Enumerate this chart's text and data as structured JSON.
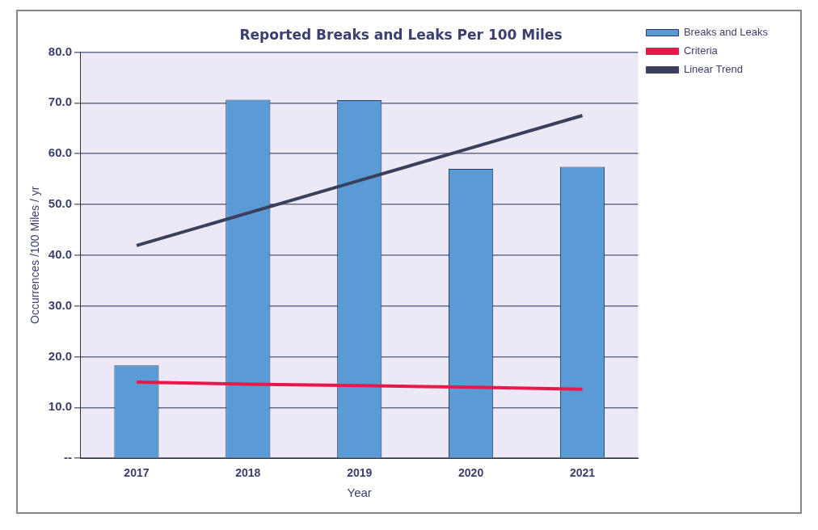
{
  "chart_data": {
    "type": "bar",
    "title": "Reported Breaks and Leaks Per 100 Miles",
    "xlabel": "Year",
    "ylabel": "Occurrences /100 Miles / yr",
    "categories": [
      "2017",
      "2018",
      "2019",
      "2020",
      "2021"
    ],
    "series": [
      {
        "name": "Breaks and Leaks",
        "color": "#5b9bd5",
        "values": [
          18.3,
          70.6,
          70.5,
          57.0,
          57.4
        ]
      },
      {
        "name": "Criteria",
        "type": "line",
        "color": "#e8194a",
        "values": [
          15.0,
          14.6,
          14.3,
          14.0,
          13.6
        ]
      },
      {
        "name": "Linear Trend",
        "type": "line",
        "color": "#3a3f5c",
        "values": [
          41.9,
          48.3,
          54.7,
          61.1,
          67.5
        ]
      }
    ],
    "ylim": [
      0,
      80
    ],
    "yticks": [
      {
        "value": 0,
        "label": "--"
      },
      {
        "value": 10,
        "label": "10.0"
      },
      {
        "value": 20,
        "label": "20.0"
      },
      {
        "value": 30,
        "label": "30.0"
      },
      {
        "value": 40,
        "label": "40.0"
      },
      {
        "value": 50,
        "label": "50.0"
      },
      {
        "value": 60,
        "label": "60.0"
      },
      {
        "value": 70,
        "label": "70.0"
      },
      {
        "value": 80,
        "label": "80.0"
      }
    ],
    "grid": "y",
    "legend": "top right",
    "marker": "none",
    "line_style": "solid"
  }
}
